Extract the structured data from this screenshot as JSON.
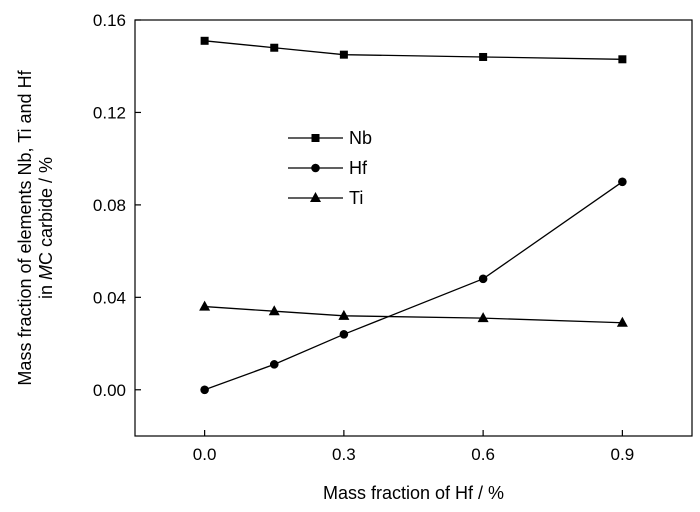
{
  "chart_data": {
    "type": "line",
    "xlabel": "Mass fraction of Hf / %",
    "ylabel_line1": "Mass fraction of elements Nb, Ti and Hf",
    "ylabel_line2_prefix": "in ",
    "ylabel_line2_italic": "M",
    "ylabel_line2_suffix": "C carbide / %",
    "xlim": [
      -0.15,
      1.05
    ],
    "ylim": [
      -0.02,
      0.16
    ],
    "x_ticks": [
      0.0,
      0.3,
      0.6,
      0.9
    ],
    "x_tick_labels": [
      "0.0",
      "0.3",
      "0.6",
      "0.9"
    ],
    "y_ticks": [
      0.0,
      0.04,
      0.08,
      0.12,
      0.16
    ],
    "y_tick_labels": [
      "0.00",
      "0.04",
      "0.08",
      "0.12",
      "0.16"
    ],
    "grid": false,
    "legend_position": "upper-middle",
    "series": [
      {
        "name": "Nb",
        "marker": "square",
        "x": [
          0.0,
          0.15,
          0.3,
          0.6,
          0.9
        ],
        "y": [
          0.151,
          0.148,
          0.145,
          0.144,
          0.143
        ]
      },
      {
        "name": "Hf",
        "marker": "circle",
        "x": [
          0.0,
          0.15,
          0.3,
          0.6,
          0.9
        ],
        "y": [
          0.0,
          0.011,
          0.024,
          0.048,
          0.09
        ]
      },
      {
        "name": "Ti",
        "marker": "triangle",
        "x": [
          0.0,
          0.15,
          0.3,
          0.6,
          0.9
        ],
        "y": [
          0.036,
          0.034,
          0.032,
          0.031,
          0.029
        ]
      }
    ],
    "line_color": "#000000"
  }
}
